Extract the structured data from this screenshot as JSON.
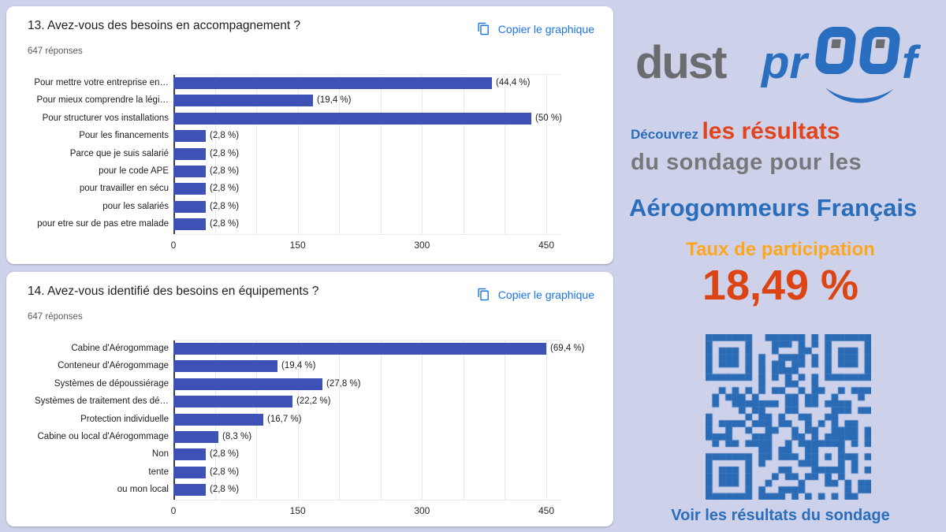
{
  "ui": {
    "copy_label": "Copier le graphique",
    "qr_caption": "Voir les résultats du sondage"
  },
  "brand": {
    "part_gray": "dust",
    "part_blue": "pr",
    "part_f": "f"
  },
  "tagline": {
    "lead": "Découvrez",
    "emphasis": "les résultats",
    "line2": "du sondage pour les",
    "line3": "Aérogommeurs Français"
  },
  "participation": {
    "label": "Taux de participation",
    "value": "18,49 %"
  },
  "colors": {
    "page_bg": "#cdd1ea",
    "bar": "#3e51b4",
    "link_blue": "#1a73e8",
    "logo_gray": "#6b6c6f",
    "logo_blue": "#2a6ec0",
    "accent_red": "#dc4513",
    "accent_orange": "#ffa51e",
    "tagline_gray": "#77787b",
    "qr_blue": "#2a6bb5"
  },
  "qr": {
    "modules": 25,
    "cell": 8.4
  },
  "chart_data": [
    {
      "type": "bar",
      "orientation": "horizontal",
      "title": "13. Avez-vous des besoins en accompagnement ?",
      "subtitle": "647 réponses",
      "categories": [
        "Pour mettre votre entreprise en…",
        "Pour mieux comprendre la légi…",
        "Pour structurer vos installations",
        "Pour les financements",
        "Parce que je suis salarié",
        "pour le code APE",
        "pour travailler en sécu",
        "pour les salariés",
        "pour etre sur de pas etre malade"
      ],
      "pct_labels": [
        "(44,4 %)",
        "(19,4 %)",
        "(50 %)",
        "(2,8 %)",
        "(2,8 %)",
        "(2,8 %)",
        "(2,8 %)",
        "(2,8 %)",
        "(2,8 %)"
      ],
      "values_pct": [
        44.4,
        19.4,
        50,
        2.8,
        2.8,
        2.8,
        2.8,
        2.8,
        2.8
      ],
      "values": [
        384,
        168,
        432,
        24,
        24,
        24,
        24,
        24,
        24
      ],
      "xlim": [
        0,
        450
      ],
      "xticks": [
        0,
        150,
        300,
        450
      ],
      "grid_step": 50,
      "bar_color": "#3e51b4"
    },
    {
      "type": "bar",
      "orientation": "horizontal",
      "title": "14. Avez-vous identifié des besoins en équipements ?",
      "subtitle": "647 réponses",
      "categories": [
        "Cabine d'Aérogommage",
        "Conteneur d'Aérogommage",
        "Systèmes de dépoussiérage",
        "Systèmes de traitement des dé…",
        "Protection individuelle",
        "Cabine ou local d'Aérogommage",
        "Non",
        "tente",
        "ou mon local"
      ],
      "pct_labels": [
        "(69,4 %)",
        "(19,4 %)",
        "(27,8 %)",
        "(22,2 %)",
        "(16,7 %)",
        "(8,3 %)",
        "(2,8 %)",
        "(2,8 %)",
        "(2,8 %)"
      ],
      "values_pct": [
        69.4,
        19.4,
        27.8,
        22.2,
        16.7,
        8.3,
        2.8,
        2.8,
        2.8
      ],
      "values": [
        450,
        126,
        180,
        144,
        108,
        54,
        18,
        18,
        18
      ],
      "xlim": [
        0,
        450
      ],
      "xticks": [
        0,
        150,
        300,
        450
      ],
      "grid_step": 50,
      "bar_color": "#3e51b4"
    }
  ]
}
